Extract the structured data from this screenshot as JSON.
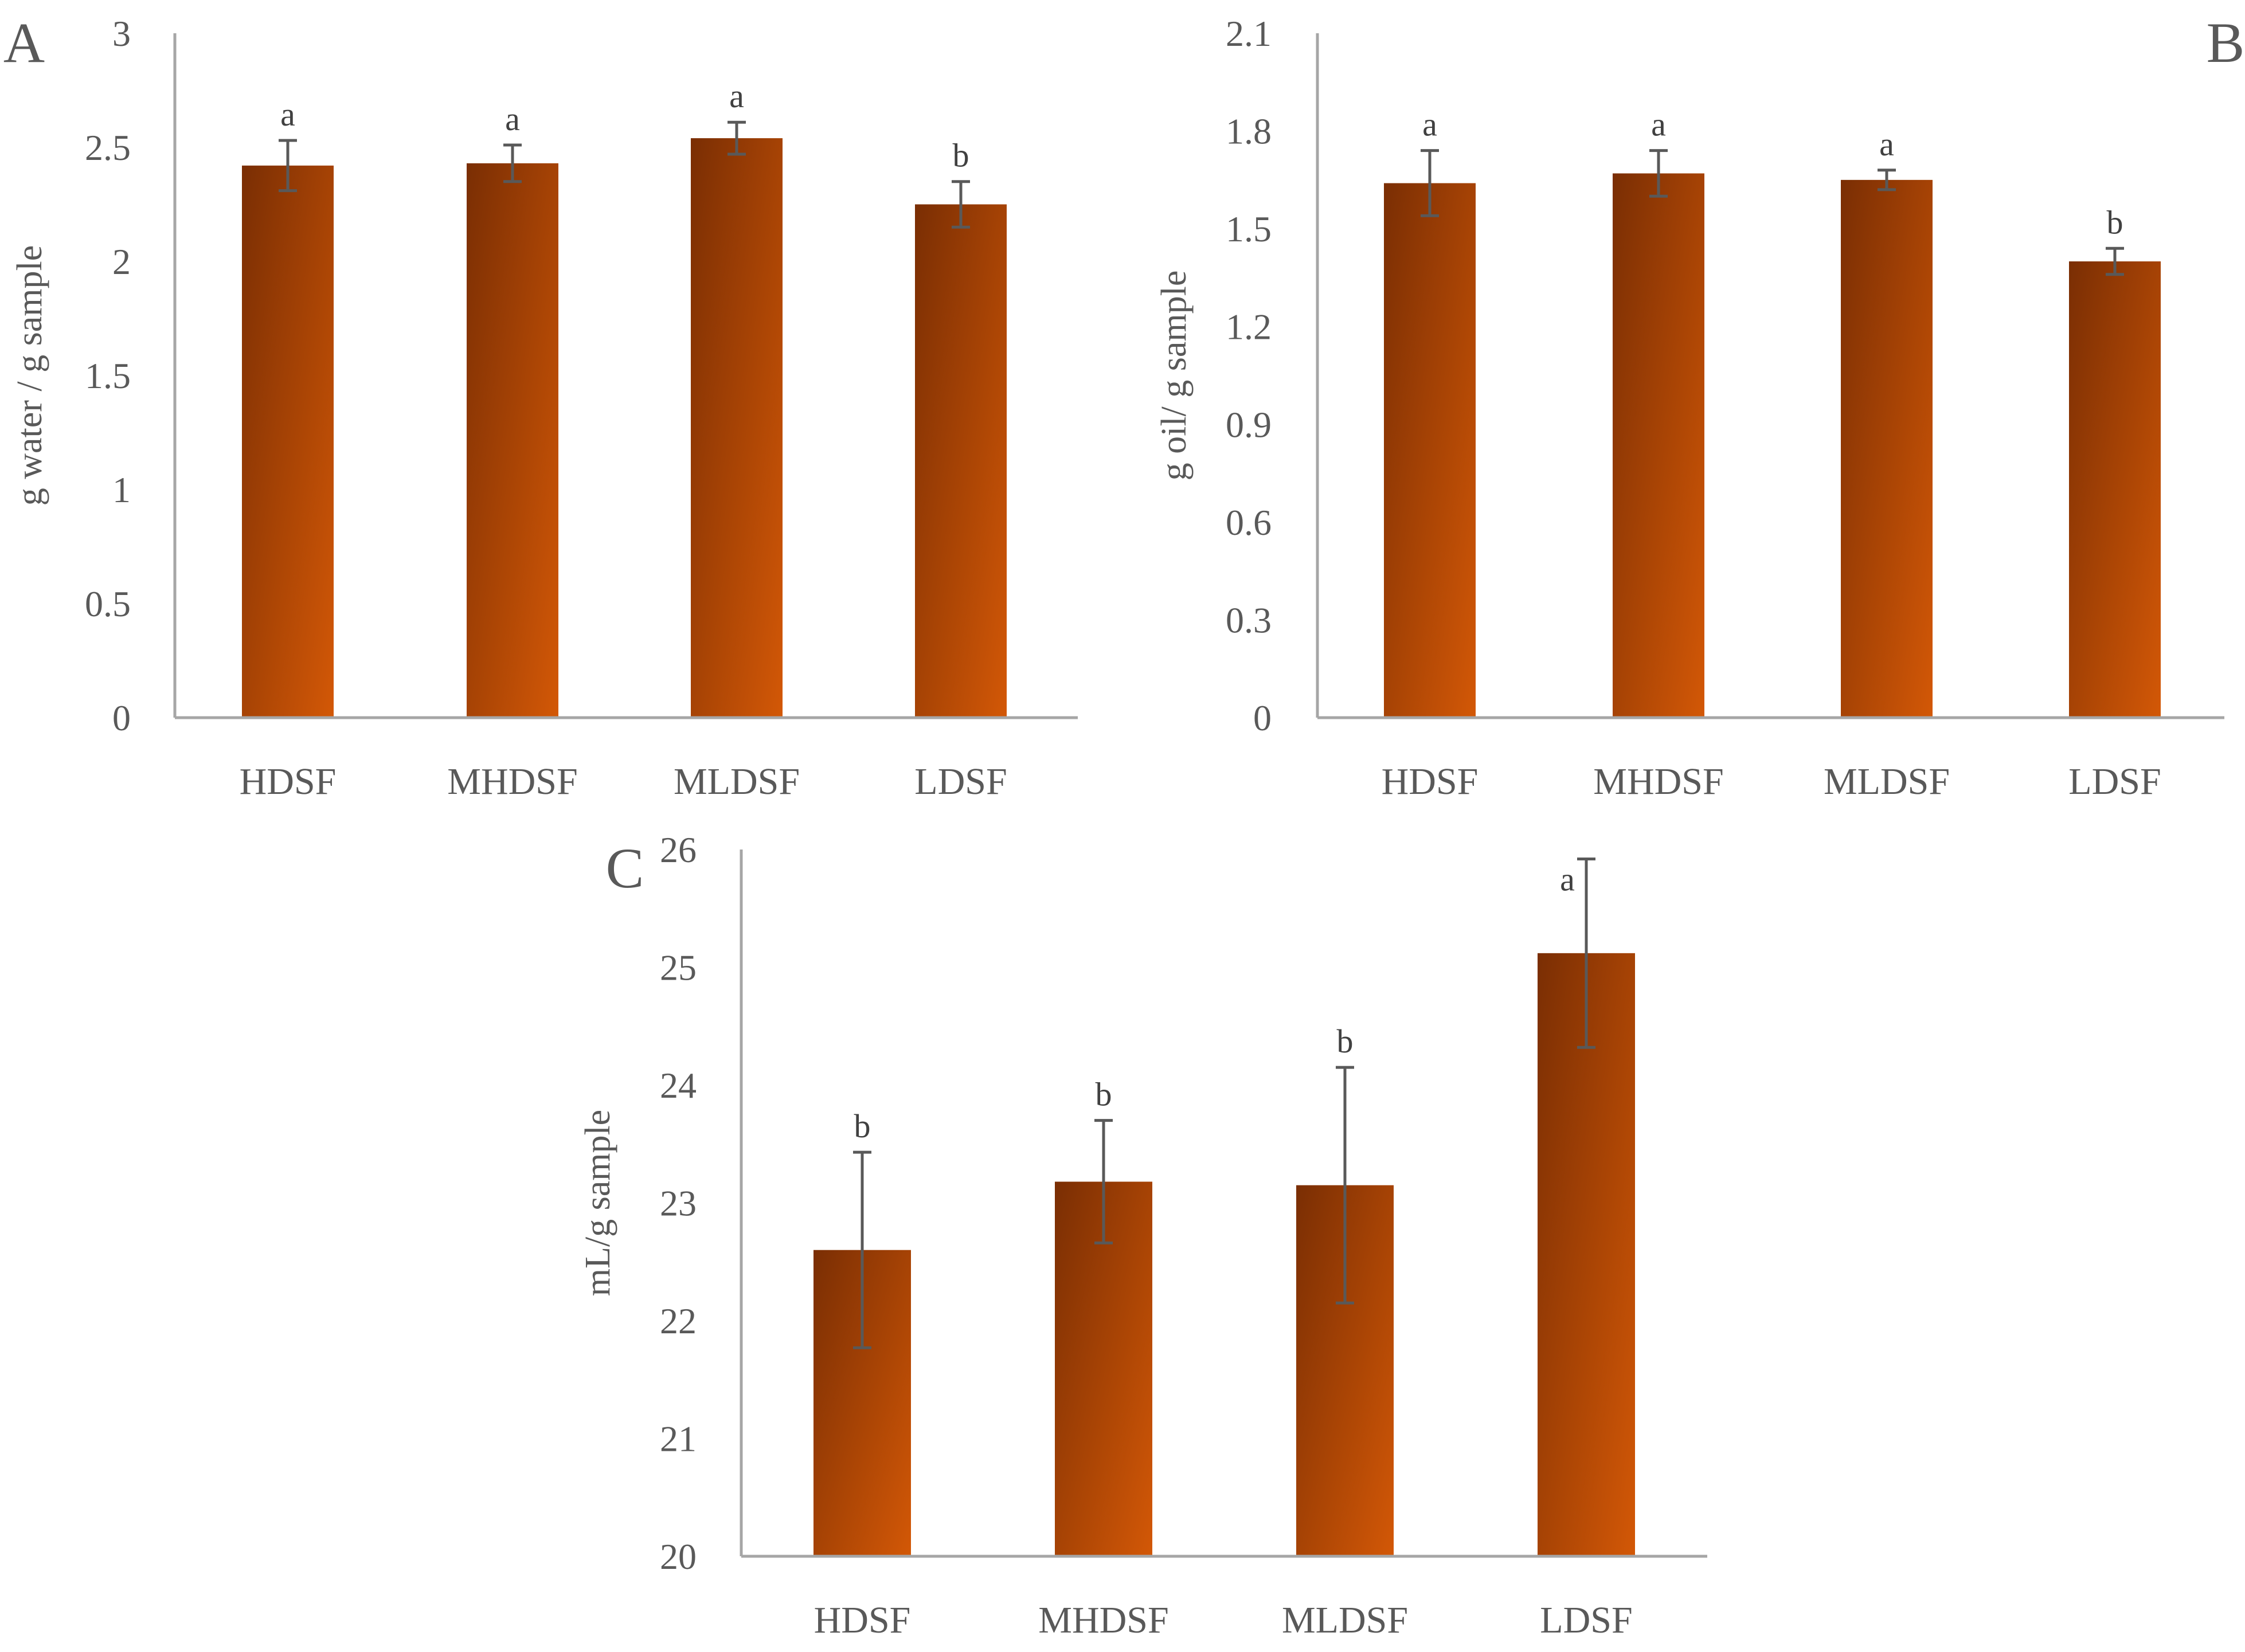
{
  "figure": {
    "colors": {
      "bar_dark": "#7a2e04",
      "bar_light": "#d35806",
      "axis": "#a6a6a6",
      "text": "#595959",
      "error": "#595959"
    }
  },
  "chart_data": [
    {
      "panel": "A",
      "type": "bar",
      "title": "",
      "xlabel": "",
      "ylabel": "g water / g sample",
      "categories": [
        "HDSF",
        "MHDSF",
        "MLDSF",
        "LDSF"
      ],
      "values": [
        2.42,
        2.43,
        2.54,
        2.25
      ],
      "errors": [
        0.11,
        0.08,
        0.07,
        0.1
      ],
      "letters": [
        "a",
        "a",
        "a",
        "b"
      ],
      "ylim": [
        0,
        3
      ],
      "yticks": [
        0,
        0.5,
        1,
        1.5,
        2,
        2.5,
        3
      ],
      "ytick_labels": [
        "0",
        "0.5",
        "1",
        "1.5",
        "2",
        "2.5",
        "3"
      ]
    },
    {
      "panel": "B",
      "type": "bar",
      "title": "",
      "xlabel": "",
      "ylabel": "g oil/ g sample",
      "categories": [
        "HDSF",
        "MHDSF",
        "MLDSF",
        "LDSF"
      ],
      "values": [
        1.64,
        1.67,
        1.65,
        1.4
      ],
      "errors": [
        0.1,
        0.07,
        0.03,
        0.04
      ],
      "letters": [
        "a",
        "a",
        "a",
        "b"
      ],
      "ylim": [
        0,
        2.1
      ],
      "yticks": [
        0,
        0.3,
        0.6,
        0.9,
        1.2,
        1.5,
        1.8,
        2.1
      ],
      "ytick_labels": [
        "0",
        "0.3",
        "0.6",
        "0.9",
        "1.2",
        "1.5",
        "1.8",
        "2.1"
      ]
    },
    {
      "panel": "C",
      "type": "bar",
      "title": "",
      "xlabel": "",
      "ylabel": "mL/g sample",
      "categories": [
        "HDSF",
        "MHDSF",
        "MLDSF",
        "LDSF"
      ],
      "values": [
        22.6,
        23.18,
        23.15,
        25.12
      ],
      "errors": [
        0.83,
        0.52,
        1.0,
        0.8
      ],
      "letters": [
        "b",
        "b",
        "b",
        "a"
      ],
      "ylim": [
        20,
        26
      ],
      "yticks": [
        20,
        21,
        22,
        23,
        24,
        25,
        26
      ],
      "ytick_labels": [
        "20",
        "21",
        "22",
        "23",
        "24",
        "25",
        "26"
      ]
    }
  ]
}
